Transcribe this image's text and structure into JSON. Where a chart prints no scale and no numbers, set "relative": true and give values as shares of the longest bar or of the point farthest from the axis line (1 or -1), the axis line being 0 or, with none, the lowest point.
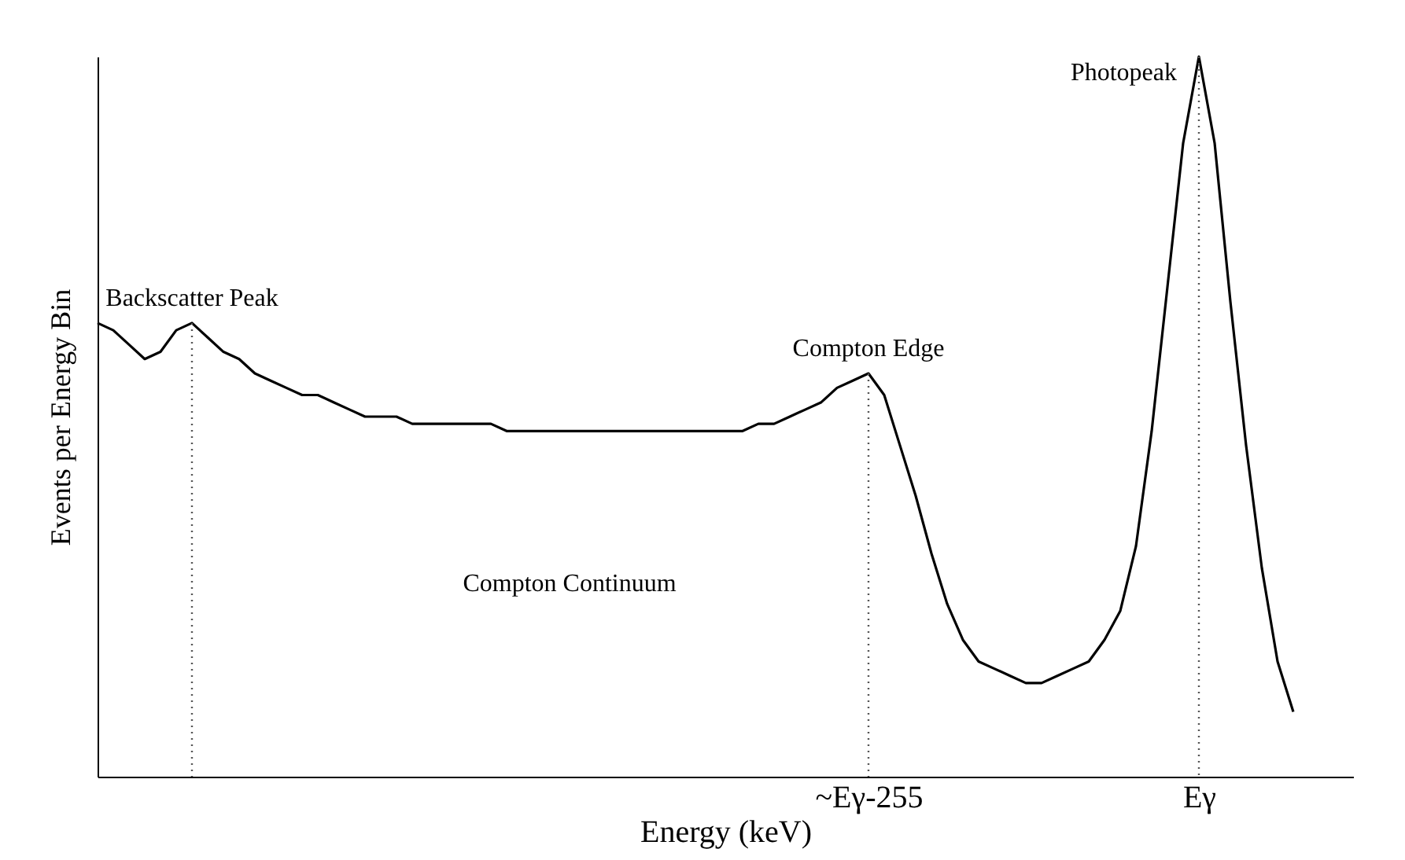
{
  "chart_data": {
    "type": "line",
    "relative": true,
    "xlabel": "Energy (keV)",
    "ylabel": "Events per Energy Bin",
    "color": "#000000",
    "grid": false,
    "marker": "none",
    "line_style": "solid",
    "categories": [
      null,
      null,
      null,
      null,
      null,
      null,
      null,
      null,
      null,
      null,
      null,
      null,
      null,
      null,
      null,
      null,
      null,
      null,
      null,
      null,
      null,
      null,
      null,
      null,
      null,
      null,
      null,
      null,
      null,
      null,
      null,
      null,
      null,
      null,
      null,
      null,
      null,
      null,
      null,
      null,
      null,
      null,
      null,
      null,
      null,
      null,
      null,
      null,
      null,
      "~Eγ-255",
      null,
      null,
      null,
      null,
      null,
      null,
      null,
      null,
      null,
      null,
      null,
      null,
      null,
      null,
      null,
      null,
      null,
      null,
      null,
      null,
      "Eγ",
      null,
      null,
      null,
      null,
      null,
      null
    ],
    "values": [
      0.63,
      0.62,
      0.6,
      0.58,
      0.59,
      0.62,
      0.63,
      0.61,
      0.59,
      0.58,
      0.56,
      0.55,
      0.54,
      0.53,
      0.53,
      0.52,
      0.51,
      0.5,
      0.5,
      0.5,
      0.49,
      0.49,
      0.49,
      0.49,
      0.49,
      0.49,
      0.48,
      0.48,
      0.48,
      0.48,
      0.48,
      0.48,
      0.48,
      0.48,
      0.48,
      0.48,
      0.48,
      0.48,
      0.48,
      0.48,
      0.48,
      0.48,
      0.49,
      0.49,
      0.5,
      0.51,
      0.52,
      0.54,
      0.55,
      0.56,
      0.53,
      0.46,
      0.39,
      0.31,
      0.24,
      0.19,
      0.16,
      0.15,
      0.14,
      0.13,
      0.13,
      0.14,
      0.15,
      0.16,
      0.19,
      0.23,
      0.32,
      0.48,
      0.68,
      0.88,
      1,
      0.88,
      0.66,
      0.46,
      0.29,
      0.16,
      0.09
    ],
    "ref_lines": [
      {
        "axis": "x",
        "value": "~Eγ-255",
        "label": "Compton Edge",
        "line_style": "dotted"
      },
      {
        "axis": "x",
        "value": "Eγ",
        "label": "Photopeak",
        "line_style": "dotted"
      }
    ],
    "annotations": [
      "Backscatter Peak",
      "Compton Continuum"
    ]
  }
}
